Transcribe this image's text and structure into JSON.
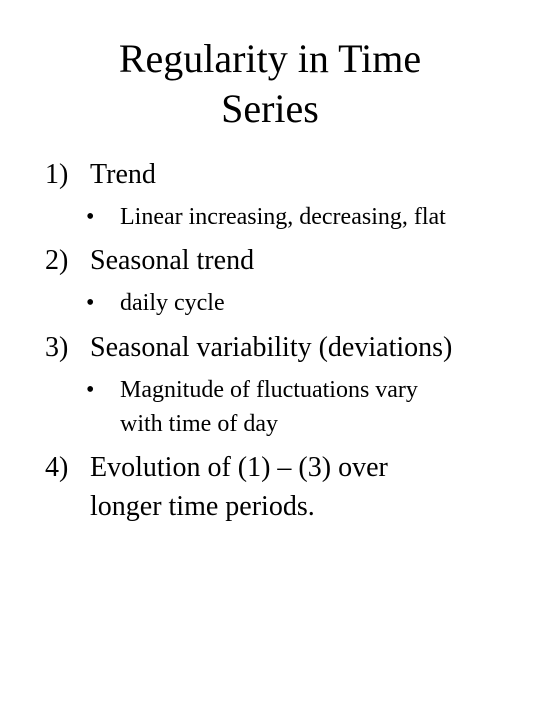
{
  "title": {
    "line1": "Regularity in Time",
    "line2": "Series"
  },
  "items": [
    {
      "number": "1)",
      "text": "Trend",
      "sub": {
        "bullet": "•",
        "text": "Linear increasing, decreasing, flat"
      }
    },
    {
      "number": "2)",
      "text": "Seasonal trend",
      "sub": {
        "bullet": "•",
        "text": "daily cycle"
      }
    },
    {
      "number": "3)",
      "text": "Seasonal variability (deviations)",
      "sub": {
        "bullet": "•",
        "line1": "Magnitude of fluctuations vary",
        "line2": "with time of day"
      }
    },
    {
      "number": "4)",
      "line1": "Evolution of (1) – (3) over",
      "line2": "longer time periods."
    }
  ]
}
